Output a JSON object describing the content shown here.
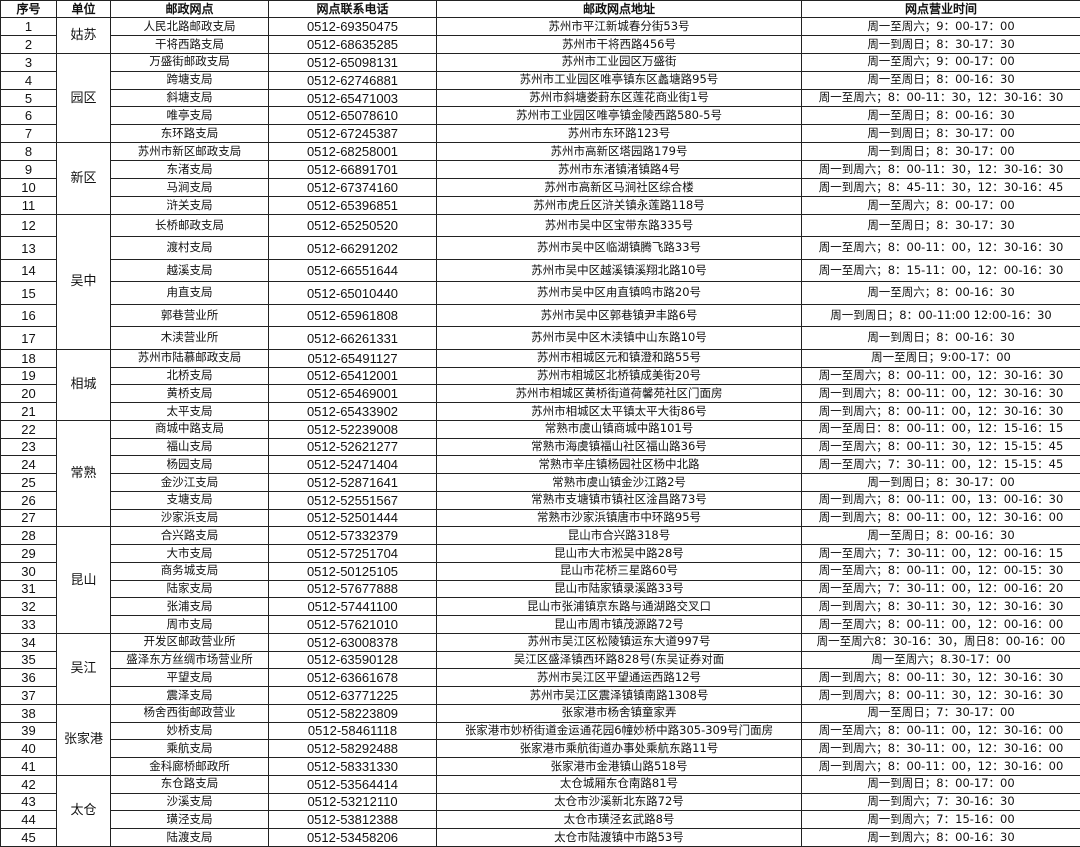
{
  "headers": [
    "序号",
    "单位",
    "邮政网点",
    "网点联系电话",
    "邮政网点地址",
    "网点营业时间"
  ],
  "groups": [
    {
      "unit": "姑苏",
      "rows": [
        [
          "1",
          "人民北路邮政支局",
          "0512-69350475",
          "苏州市平江新城春分街53号",
          "周一至周六；9：00-17：00"
        ],
        [
          "2",
          "干将西路支局",
          "0512-68635285",
          "苏州市干将西路456号",
          "周一到周日；8：30-17：30"
        ]
      ]
    },
    {
      "unit": "园区",
      "rows": [
        [
          "3",
          "万盛街邮政支局",
          "0512-65098131",
          "苏州市工业园区万盛街",
          "周一至周六；9：00-17：00"
        ],
        [
          "4",
          "跨塘支局",
          "0512-62746881",
          "苏州市工业园区唯亭镇东区蠡塘路95号",
          "周一至周日；8：00-16：30"
        ],
        [
          "5",
          "斜塘支局",
          "0512-65471003",
          "苏州市斜塘娄葑东区莲花商业街1号",
          "周一至周六；8：00-11：30，12：30-16：30"
        ],
        [
          "6",
          "唯亭支局",
          "0512-65078610",
          "苏州市工业园区唯亭镇金陵西路580-5号",
          "周一至周日；8：00-16：30"
        ],
        [
          "7",
          "东环路支局",
          "0512-67245387",
          "苏州市东环路123号",
          "周一到周日；8：30-17：00"
        ]
      ]
    },
    {
      "unit": "新区",
      "rows": [
        [
          "8",
          "苏州市新区邮政支局",
          "0512-68258001",
          "苏州市高新区塔园路179号",
          "周一到周日；8：30-17：00"
        ],
        [
          "9",
          "东渚支局",
          "0512-66891701",
          "苏州市东渚镇渚镇路4号",
          "周一到周六；8：00-11：30，12：30-16：30"
        ],
        [
          "10",
          "马涧支局",
          "0512-67374160",
          "苏州市高新区马涧社区综合楼",
          "周一到周六；8：45-11：30，12：30-16：45"
        ],
        [
          "11",
          "浒关支局",
          "0512-65396851",
          "苏州市虎丘区浒关镇永莲路118号",
          "周一至周六；8：00-17：00"
        ]
      ]
    },
    {
      "unit": "吴中",
      "rows": [
        [
          "12",
          "长桥邮政支局",
          "0512-65250520",
          "苏州市吴中区宝带东路335号",
          "周一至周日；8：30-17：30"
        ],
        [
          "13",
          "渡村支局",
          "0512-66291202",
          "苏州市吴中区临湖镇腾飞路33号",
          "周一至周六；8：00-11：00，12：30-16：30"
        ],
        [
          "14",
          "越溪支局",
          "0512-66551644",
          "苏州市吴中区越溪镇溪翔北路10号",
          "周一至周六；8：15-11：00，12：00-16：30"
        ],
        [
          "15",
          "甪直支局",
          "0512-65010440",
          "苏州市吴中区甪直镇鸣市路20号",
          "周一至周六；8：00-16：30"
        ],
        [
          "16",
          "郭巷营业所",
          "0512-65961808",
          "苏州市吴中区郭巷镇尹丰路6号",
          "周一到周日；8：00-11:00 12:00-16：30"
        ],
        [
          "17",
          "木渎营业所",
          "0512-66261331",
          "苏州市吴中区木渎镇中山东路10号",
          "周一到周日；8：00-16：30"
        ]
      ]
    },
    {
      "unit": "相城",
      "rows": [
        [
          "18",
          "苏州市陆慕邮政支局",
          "0512-65491127",
          "苏州市相城区元和镇澄和路55号",
          "周一至周日；9:00-17：00"
        ],
        [
          "19",
          "北桥支局",
          "0512-65412001",
          "苏州市相城区北桥镇成美街20号",
          "周一至周六；8：00-11：00，12：30-16：30"
        ],
        [
          "20",
          "黄桥支局",
          "0512-65469001",
          "苏州市相城区黄桥街道荷馨苑社区门面房",
          "周一到周六；8：00-11：00，12：30-16：30"
        ],
        [
          "21",
          "太平支局",
          "0512-65433902",
          "苏州市相城区太平镇太平大街86号",
          "周一到周六；8：00-11：00，12：30-16：30"
        ]
      ]
    },
    {
      "unit": "常熟",
      "rows": [
        [
          "22",
          "商城中路支局",
          "0512-52239008",
          "常熟市虞山镇商城中路101号",
          "周一至周日：8：00-11：00，12：15-16：15"
        ],
        [
          "23",
          "福山支局",
          "0512-52621277",
          "常熟市海虞镇福山社区福山路36号",
          "周一至周六；8：00-11：30，12：15-15：45"
        ],
        [
          "24",
          "杨园支局",
          "0512-52471404",
          "常熟市辛庄镇杨园社区杨中北路",
          "周一至周六；7：30-11：00，12：15-15：45"
        ],
        [
          "25",
          "金沙江支局",
          "0512-52871641",
          "常熟市虞山镇金沙江路2号",
          "周一到周日；8：30-17：00"
        ],
        [
          "26",
          "支塘支局",
          "0512-52551567",
          "常熟市支塘镇市镇社区淦昌路73号",
          "周一到周六；8：00-11：00，13：00-16：30"
        ],
        [
          "27",
          "沙家浜支局",
          "0512-52501444",
          "常熟市沙家浜镇唐市中环路95号",
          "周一到周六；8：00-11：00，12：30-16：00"
        ]
      ]
    },
    {
      "unit": "昆山",
      "rows": [
        [
          "28",
          "合兴路支局",
          "0512-57332379",
          "昆山市合兴路318号",
          "周一至周日；8：00-16：30"
        ],
        [
          "29",
          "大市支局",
          "0512-57251704",
          "昆山市大市淞吴中路28号",
          "周一至周六；7：30-11：00，12：00-16：15"
        ],
        [
          "30",
          "商务城支局",
          "0512-50125105",
          "昆山市花桥三星路60号",
          "周一至周六；8：00-11：00，12：00-15：30"
        ],
        [
          "31",
          "陆家支局",
          "0512-57677888",
          "昆山市陆家镇录溪路33号",
          "周一至周六；7：30-11：00，12：00-16：20"
        ],
        [
          "32",
          "张浦支局",
          "0512-57441100",
          "昆山市张浦镇京东路与通湖路交叉口",
          "周一到周六；8：30-11：30，12：30-16：30"
        ],
        [
          "33",
          "周市支局",
          "0512-57621010",
          "昆山市周市镇茂源路72号",
          "周一至周六；8：00-11：00，12：00-16：00"
        ]
      ]
    },
    {
      "unit": "吴江",
      "rows": [
        [
          "34",
          "开发区邮政营业所",
          "0512-63008378",
          "苏州市吴江区松陵镇运东大道997号",
          "周一至周六8：30-16：30，周日8：00-16：00"
        ],
        [
          "35",
          "盛泽东方丝绸市场营业所",
          "0512-63590128",
          "吴江区盛泽镇西环路828号(东吴证券对面",
          "周一至周六；8.30-17：00"
        ],
        [
          "36",
          "平望支局",
          "0512-63661678",
          "苏州市吴江区平望通运西路12号",
          "周一到周六；8：00-11：30，12：30-16：30"
        ],
        [
          "37",
          "震泽支局",
          "0512-63771225",
          "苏州市吴江区震泽镇镇南路1308号",
          "周一到周六；8：00-11：30，12：30-16：30"
        ]
      ]
    },
    {
      "unit": "张家港",
      "rows": [
        [
          "38",
          "杨舍西街邮政营业",
          "0512-58223809",
          "张家港市杨舍镇童家弄",
          "周一至周日；7：30-17：00"
        ],
        [
          "39",
          "妙桥支局",
          "0512-58461118",
          "张家港市妙桥街道金运通花园6幢妙桥中路305-309号门面房",
          "周一至周六；8：00-11：00，12：30-16：00"
        ],
        [
          "40",
          "乘航支局",
          "0512-58292488",
          "张家港市乘航街道办事处乘航东路11号",
          "周一到周六；8：30-11：00，12：30-16：00"
        ],
        [
          "41",
          "金科廊桥邮政所",
          "0512-58331330",
          "张家港市金港镇山路518号",
          "周一到周六；8：00-11：00，12：30-16：00"
        ]
      ]
    },
    {
      "unit": "太仓",
      "rows": [
        [
          "42",
          "东仓路支局",
          "0512-53564414",
          "太仓城厢东仓南路81号",
          "周一到周日；8：00-17：00"
        ],
        [
          "43",
          "沙溪支局",
          "0512-53212110",
          "太仓市沙溪新北东路72号",
          "周一到周六；7：30-16：30"
        ],
        [
          "44",
          "璜泾支局",
          "0512-53812388",
          "太仓市璜泾玄武路8号",
          "周一到周六；7：15-16：00"
        ],
        [
          "45",
          "陆渡支局",
          "0512-53458206",
          "太仓市陆渡镇中市路53号",
          "周一到周六；8：00-16：30"
        ]
      ]
    }
  ]
}
